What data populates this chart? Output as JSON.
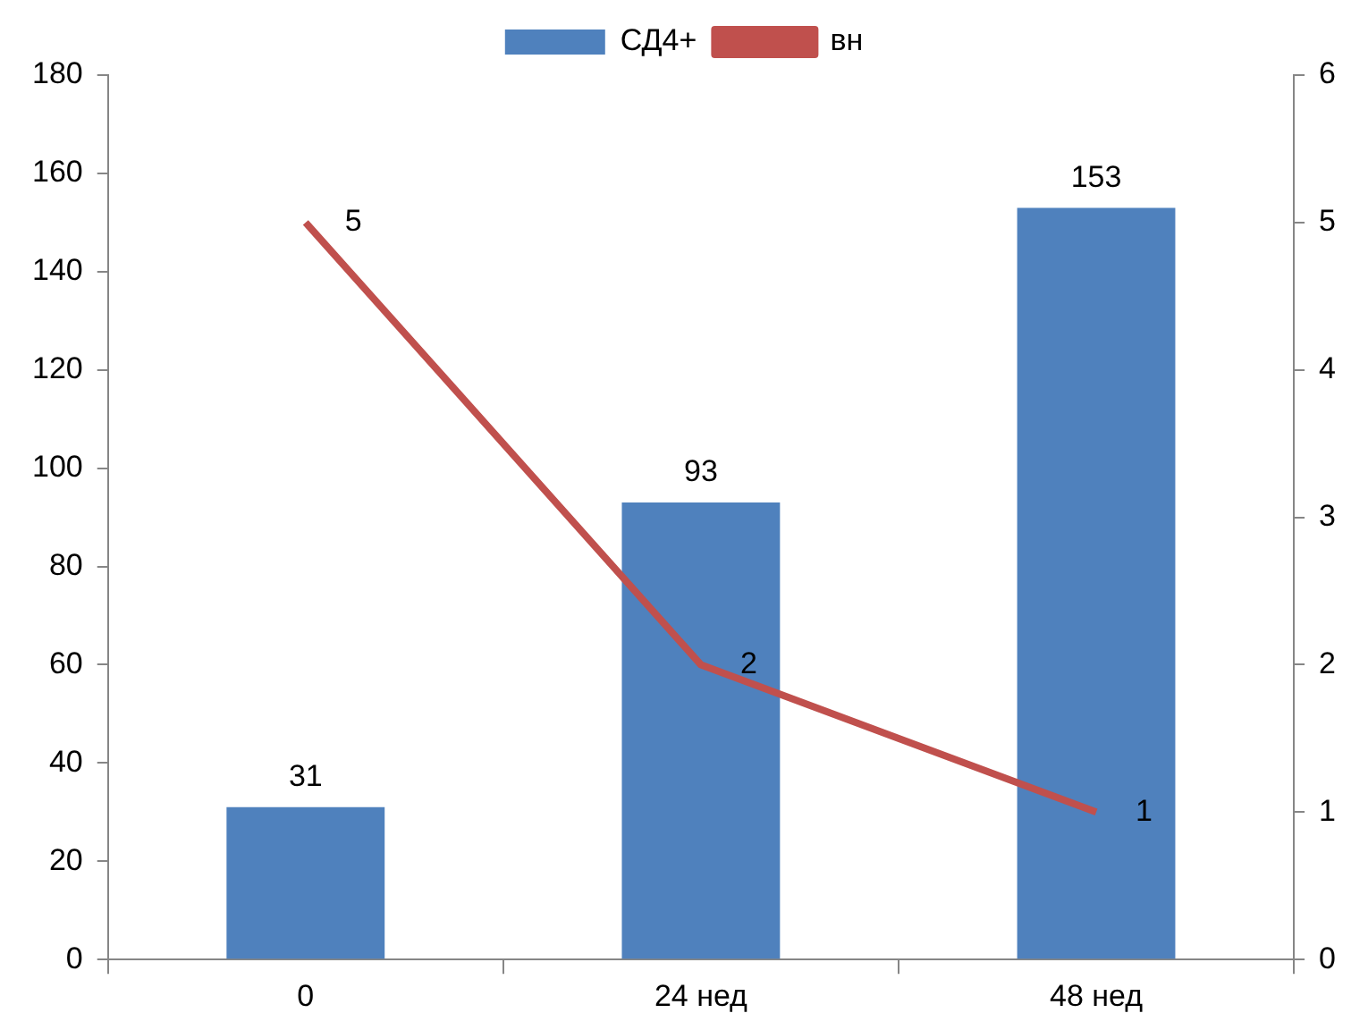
{
  "chart_data": {
    "type": "bar",
    "categories": [
      "0",
      "24 нед",
      "48 нед"
    ],
    "series": [
      {
        "name": "СД4+",
        "color": "#4f81bd",
        "values": [
          31,
          93,
          153
        ]
      },
      {
        "name": "вн",
        "type": "line",
        "axis": "y2",
        "color": "#c0504d",
        "values": [
          5,
          2,
          1
        ]
      }
    ],
    "ylim": [
      0,
      180
    ],
    "yticks": [
      0,
      20,
      40,
      60,
      80,
      100,
      120,
      140,
      160,
      180
    ],
    "y2lim": [
      0,
      6
    ],
    "y2ticks": [
      0,
      1,
      2,
      3,
      4,
      5,
      6
    ],
    "grid": false,
    "legend": "top",
    "marker": "none",
    "data_labels": true
  }
}
